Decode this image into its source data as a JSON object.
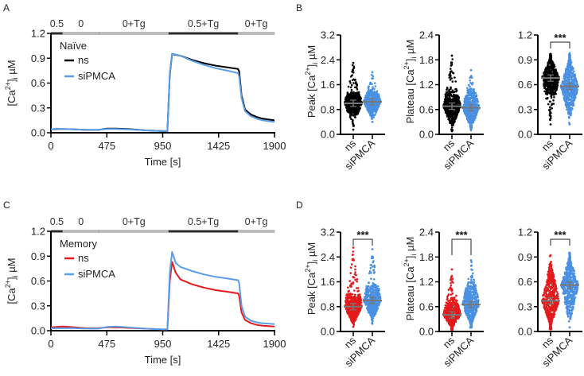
{
  "colors": {
    "ns_naive": "#000000",
    "ns_memory": "#e31a1c",
    "siPMCA": "#4a90e2",
    "siPMCA_line": "#5b9ee8",
    "mean_bar": "#777777",
    "protocol_dark": "#2b2b2b",
    "protocol_light": "#bdbdbd",
    "axis": "#000000"
  },
  "chart_data": [
    {
      "panel": "A",
      "type": "line",
      "legend_title": "Naïve",
      "legend_position": "top-left",
      "xlabel": "Time [s]",
      "ylabel": "[Ca2+]i µM",
      "xlim": [
        0,
        1900
      ],
      "ylim": [
        0,
        1.2
      ],
      "xticks": [
        0,
        475,
        950,
        1425,
        1900
      ],
      "yticks": [
        "0.0",
        "0.3",
        "0.6",
        "0.9",
        "1.2"
      ],
      "protocol": [
        {
          "label": "0.5",
          "start": 0,
          "end": 100,
          "tone": "dark"
        },
        {
          "label": "0",
          "start": 100,
          "end": 410,
          "tone": "light"
        },
        {
          "label": "0+Tg",
          "start": 410,
          "end": 1000,
          "tone": "light"
        },
        {
          "label": "0.5+Tg",
          "start": 1000,
          "end": 1590,
          "tone": "dark"
        },
        {
          "label": "0+Tg",
          "start": 1590,
          "end": 1900,
          "tone": "light"
        }
      ],
      "series": [
        {
          "name": "ns",
          "color_key": "ns_naive",
          "x": [
            0,
            50,
            100,
            200,
            300,
            400,
            475,
            550,
            650,
            800,
            950,
            990,
            1010,
            1030,
            1100,
            1200,
            1300,
            1400,
            1500,
            1590,
            1600,
            1620,
            1650,
            1700,
            1750,
            1800,
            1900
          ],
          "y": [
            0.04,
            0.045,
            0.045,
            0.04,
            0.035,
            0.035,
            0.05,
            0.05,
            0.045,
            0.03,
            0.02,
            0.02,
            0.7,
            0.95,
            0.93,
            0.88,
            0.84,
            0.81,
            0.79,
            0.77,
            0.74,
            0.45,
            0.28,
            0.22,
            0.19,
            0.17,
            0.15
          ]
        },
        {
          "name": "siPMCA",
          "color_key": "siPMCA_line",
          "x": [
            0,
            50,
            100,
            200,
            300,
            400,
            475,
            550,
            650,
            800,
            950,
            990,
            1010,
            1030,
            1100,
            1200,
            1300,
            1400,
            1500,
            1590,
            1600,
            1620,
            1650,
            1700,
            1750,
            1800,
            1900
          ],
          "y": [
            0.04,
            0.05,
            0.045,
            0.04,
            0.035,
            0.035,
            0.045,
            0.045,
            0.04,
            0.03,
            0.02,
            0.02,
            0.72,
            0.955,
            0.93,
            0.87,
            0.82,
            0.78,
            0.75,
            0.72,
            0.68,
            0.42,
            0.26,
            0.2,
            0.17,
            0.15,
            0.13
          ]
        }
      ]
    },
    {
      "panel": "C",
      "type": "line",
      "legend_title": "Memory",
      "legend_position": "top-left",
      "xlabel": "Time [s]",
      "ylabel": "[Ca2+]i µM",
      "xlim": [
        0,
        1900
      ],
      "ylim": [
        0,
        1.2
      ],
      "xticks": [
        0,
        475,
        950,
        1425,
        1900
      ],
      "yticks": [
        "0.0",
        "0.3",
        "0.6",
        "0.9",
        "1.2"
      ],
      "protocol": [
        {
          "label": "0.5",
          "start": 0,
          "end": 100,
          "tone": "dark"
        },
        {
          "label": "0",
          "start": 100,
          "end": 410,
          "tone": "light"
        },
        {
          "label": "0+Tg",
          "start": 410,
          "end": 1000,
          "tone": "light"
        },
        {
          "label": "0.5+Tg",
          "start": 1000,
          "end": 1590,
          "tone": "dark"
        },
        {
          "label": "0+Tg",
          "start": 1590,
          "end": 1900,
          "tone": "light"
        }
      ],
      "series": [
        {
          "name": "ns",
          "color_key": "ns_memory",
          "x": [
            0,
            50,
            100,
            200,
            300,
            400,
            475,
            550,
            650,
            800,
            950,
            990,
            1010,
            1030,
            1060,
            1100,
            1200,
            1300,
            1400,
            1500,
            1590,
            1600,
            1620,
            1650,
            1700,
            1750,
            1800,
            1900
          ],
          "y": [
            0.04,
            0.045,
            0.05,
            0.04,
            0.03,
            0.03,
            0.04,
            0.04,
            0.035,
            0.025,
            0.015,
            0.015,
            0.6,
            0.83,
            0.7,
            0.62,
            0.56,
            0.52,
            0.49,
            0.47,
            0.45,
            0.42,
            0.22,
            0.13,
            0.09,
            0.07,
            0.06,
            0.05
          ]
        },
        {
          "name": "siPMCA",
          "color_key": "siPMCA_line",
          "x": [
            0,
            50,
            100,
            200,
            300,
            400,
            475,
            550,
            650,
            800,
            950,
            990,
            1010,
            1030,
            1060,
            1100,
            1200,
            1300,
            1400,
            1500,
            1590,
            1600,
            1620,
            1650,
            1700,
            1750,
            1800,
            1900
          ],
          "y": [
            0.03,
            0.03,
            0.03,
            0.03,
            0.025,
            0.025,
            0.045,
            0.05,
            0.04,
            0.025,
            0.015,
            0.015,
            0.7,
            0.95,
            0.82,
            0.77,
            0.72,
            0.68,
            0.65,
            0.63,
            0.61,
            0.57,
            0.3,
            0.17,
            0.12,
            0.1,
            0.09,
            0.08
          ]
        }
      ]
    },
    {
      "panel": "B1",
      "type": "scatter",
      "group": "Naïve",
      "ylabel": "Peak [Ca2+]i µM",
      "ylim": [
        0,
        3.2
      ],
      "yticks": [
        "0.0",
        "0.8",
        "1.6",
        "2.4",
        "3.2"
      ],
      "categories": [
        "ns",
        "siPMCA"
      ],
      "significance": "",
      "groups": [
        {
          "name": "ns",
          "color_key": "ns_naive",
          "mean": 1.0,
          "min": 0.15,
          "max": 2.3,
          "q1": 0.82,
          "q3": 1.18
        },
        {
          "name": "siPMCA",
          "color_key": "siPMCA",
          "mean": 1.05,
          "min": 0.4,
          "max": 2.0,
          "q1": 0.88,
          "q3": 1.22
        }
      ]
    },
    {
      "panel": "B2",
      "type": "scatter",
      "group": "Naïve",
      "ylabel": "Plateau [Ca2+]i µM",
      "ylim": [
        0,
        2.4
      ],
      "yticks": [
        "0.0",
        "0.6",
        "1.2",
        "1.8",
        "2.4"
      ],
      "categories": [
        "ns",
        "siPMCA"
      ],
      "significance": "",
      "groups": [
        {
          "name": "ns",
          "color_key": "ns_naive",
          "mean": 0.68,
          "min": 0.08,
          "max": 1.9,
          "q1": 0.48,
          "q3": 0.88
        },
        {
          "name": "siPMCA",
          "color_key": "siPMCA",
          "mean": 0.64,
          "min": 0.1,
          "max": 1.55,
          "q1": 0.4,
          "q3": 0.86
        }
      ]
    },
    {
      "panel": "B3",
      "type": "scatter",
      "group": "Naïve",
      "ylabel": "Plateau/Peak",
      "ylim": [
        0,
        1.2
      ],
      "yticks": [
        "0.0",
        "0.3",
        "0.6",
        "0.9",
        "1.2"
      ],
      "categories": [
        "ns",
        "siPMCA"
      ],
      "significance": "***",
      "groups": [
        {
          "name": "ns",
          "color_key": "ns_naive",
          "mean": 0.68,
          "min": 0.12,
          "max": 0.97,
          "q1": 0.58,
          "q3": 0.82
        },
        {
          "name": "siPMCA",
          "color_key": "siPMCA",
          "mean": 0.58,
          "min": 0.12,
          "max": 0.98,
          "q1": 0.42,
          "q3": 0.76
        }
      ]
    },
    {
      "panel": "D1",
      "type": "scatter",
      "group": "Memory",
      "ylabel": "Peak [Ca2+]i µM",
      "ylim": [
        0,
        3.2
      ],
      "yticks": [
        "0.0",
        "0.8",
        "1.6",
        "2.4",
        "3.2"
      ],
      "categories": [
        "ns",
        "siPMCA"
      ],
      "significance": "***",
      "groups": [
        {
          "name": "ns",
          "color_key": "ns_memory",
          "mean": 0.8,
          "min": 0.15,
          "max": 2.7,
          "q1": 0.55,
          "q3": 1.0
        },
        {
          "name": "siPMCA",
          "color_key": "siPMCA",
          "mean": 1.0,
          "min": 0.25,
          "max": 2.65,
          "q1": 0.75,
          "q3": 1.25
        }
      ]
    },
    {
      "panel": "D2",
      "type": "scatter",
      "group": "Memory",
      "ylabel": "Plateau [Ca2+]i µM",
      "ylim": [
        0,
        2.4
      ],
      "yticks": [
        "0.0",
        "0.6",
        "1.2",
        "1.8",
        "2.4"
      ],
      "categories": [
        "ns",
        "siPMCA"
      ],
      "significance": "***",
      "groups": [
        {
          "name": "ns",
          "color_key": "ns_memory",
          "mean": 0.4,
          "min": 0.05,
          "max": 1.5,
          "q1": 0.12,
          "q3": 0.6
        },
        {
          "name": "siPMCA",
          "color_key": "siPMCA",
          "mean": 0.65,
          "min": 0.1,
          "max": 1.72,
          "q1": 0.3,
          "q3": 0.95
        }
      ]
    },
    {
      "panel": "D3",
      "type": "scatter",
      "group": "Memory",
      "ylabel": "Plateau/Peak",
      "ylim": [
        0,
        1.2
      ],
      "yticks": [
        "0.0",
        "0.3",
        "0.6",
        "0.9",
        "1.2"
      ],
      "categories": [
        "ns",
        "siPMCA"
      ],
      "significance": "***",
      "groups": [
        {
          "name": "ns",
          "color_key": "ns_memory",
          "mean": 0.37,
          "min": 0.03,
          "max": 0.92,
          "q1": 0.15,
          "q3": 0.58
        },
        {
          "name": "siPMCA",
          "color_key": "siPMCA",
          "mean": 0.56,
          "min": 0.05,
          "max": 0.95,
          "q1": 0.38,
          "q3": 0.75
        }
      ]
    }
  ],
  "panel_letters": {
    "A": "A",
    "B": "B",
    "C": "C",
    "D": "D"
  }
}
